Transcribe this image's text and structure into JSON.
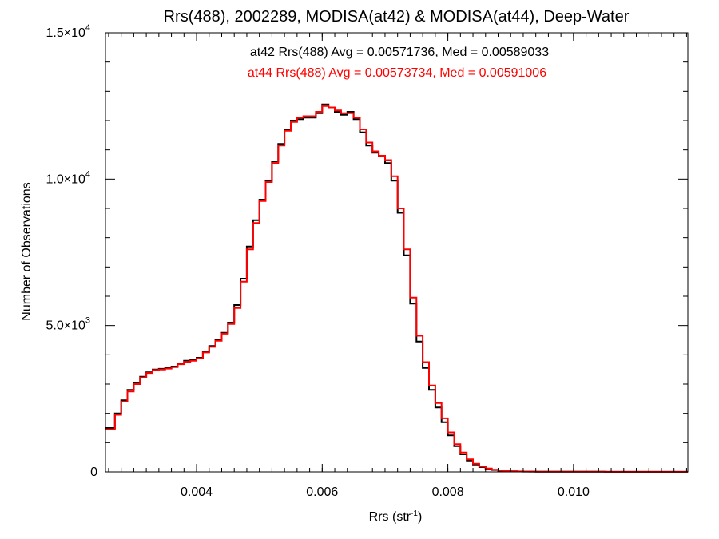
{
  "chart_data": {
    "type": "line",
    "step": true,
    "title": "Rrs(488), 2002289, MODISA(at42) & MODISA(at44), Deep-Water",
    "xlabel": {
      "base": "Rrs (str",
      "sup": "-1",
      "tail": ")"
    },
    "ylabel": "Number of Observations",
    "xlim": [
      0.00255,
      0.01182
    ],
    "ylim": [
      0,
      15000
    ],
    "grid": false,
    "legend_position": "top-center",
    "x_ticks": [
      {
        "value": 0.004,
        "label": "0.004"
      },
      {
        "value": 0.006,
        "label": "0.006"
      },
      {
        "value": 0.008,
        "label": "0.008"
      },
      {
        "value": 0.01,
        "label": "0.010"
      }
    ],
    "y_ticks": [
      {
        "value": 0,
        "mant": "0",
        "exp": ""
      },
      {
        "value": 5000,
        "mant": "5.0×10",
        "exp": "3"
      },
      {
        "value": 10000,
        "mant": "1.0×10",
        "exp": "4"
      },
      {
        "value": 15000,
        "mant": "1.5×10",
        "exp": "4"
      }
    ],
    "annotations": [
      {
        "text": "at42 Rrs(488) Avg = 0.00571736, Med = 0.00589033",
        "color": "#000000"
      },
      {
        "text": "at44 Rrs(488) Avg = 0.00573734, Med = 0.00591006",
        "color": "#ff0000"
      }
    ],
    "series": [
      {
        "name": "at42",
        "color": "#000000",
        "x": [
          0.00255,
          0.0027,
          0.0028,
          0.0029,
          0.003,
          0.0031,
          0.0032,
          0.0033,
          0.0034,
          0.0035,
          0.0036,
          0.0037,
          0.0038,
          0.0039,
          0.004,
          0.0041,
          0.0042,
          0.0043,
          0.0044,
          0.0045,
          0.0046,
          0.0047,
          0.0048,
          0.0049,
          0.005,
          0.0051,
          0.0052,
          0.0053,
          0.0054,
          0.0055,
          0.0056,
          0.0057,
          0.0058,
          0.0059,
          0.006,
          0.0061,
          0.0062,
          0.0063,
          0.0064,
          0.0065,
          0.0066,
          0.0067,
          0.0068,
          0.0069,
          0.007,
          0.0071,
          0.0072,
          0.0073,
          0.0074,
          0.0075,
          0.0076,
          0.0077,
          0.0078,
          0.0079,
          0.008,
          0.0081,
          0.0082,
          0.0083,
          0.0084,
          0.0085,
          0.0086,
          0.0087,
          0.0088,
          0.0089,
          0.009,
          0.0091,
          0.0092,
          0.0093,
          0.0094,
          0.0095,
          0.0096,
          0.0098,
          0.01,
          0.0105,
          0.011,
          0.0118
        ],
        "y": [
          1500,
          2000,
          2450,
          2800,
          3050,
          3250,
          3400,
          3500,
          3520,
          3550,
          3600,
          3700,
          3800,
          3820,
          3900,
          4100,
          4300,
          4500,
          4750,
          5100,
          5700,
          6600,
          7700,
          8600,
          9300,
          9950,
          10600,
          11200,
          11700,
          12000,
          12050,
          12100,
          12100,
          12250,
          12550,
          12450,
          12300,
          12200,
          12300,
          12050,
          11600,
          11150,
          10900,
          10800,
          10550,
          9950,
          8850,
          7400,
          5750,
          4450,
          3550,
          2800,
          2200,
          1700,
          1250,
          880,
          600,
          390,
          250,
          165,
          105,
          65,
          42,
          28,
          20,
          15,
          12,
          10,
          9,
          8,
          7,
          6,
          5,
          4,
          3,
          2
        ]
      },
      {
        "name": "at44",
        "color": "#ff0000",
        "x": [
          0.00255,
          0.0027,
          0.0028,
          0.0029,
          0.003,
          0.0031,
          0.0032,
          0.0033,
          0.0034,
          0.0035,
          0.0036,
          0.0037,
          0.0038,
          0.0039,
          0.004,
          0.0041,
          0.0042,
          0.0043,
          0.0044,
          0.0045,
          0.0046,
          0.0047,
          0.0048,
          0.0049,
          0.005,
          0.0051,
          0.0052,
          0.0053,
          0.0054,
          0.0055,
          0.0056,
          0.0057,
          0.0058,
          0.0059,
          0.006,
          0.0061,
          0.0062,
          0.0063,
          0.0064,
          0.0065,
          0.0066,
          0.0067,
          0.0068,
          0.0069,
          0.007,
          0.0071,
          0.0072,
          0.0073,
          0.0074,
          0.0075,
          0.0076,
          0.0077,
          0.0078,
          0.0079,
          0.008,
          0.0081,
          0.0082,
          0.0083,
          0.0084,
          0.0085,
          0.0086,
          0.0087,
          0.0088,
          0.0089,
          0.009,
          0.0091,
          0.0092,
          0.0093,
          0.0094,
          0.0095,
          0.0096,
          0.0098,
          0.01,
          0.0105,
          0.011,
          0.0118
        ],
        "y": [
          1450,
          1950,
          2400,
          2750,
          3000,
          3220,
          3380,
          3480,
          3500,
          3530,
          3580,
          3680,
          3760,
          3800,
          3880,
          4080,
          4270,
          4480,
          4720,
          5050,
          5600,
          6500,
          7600,
          8500,
          9250,
          9900,
          10550,
          11150,
          11650,
          11950,
          12100,
          12150,
          12150,
          12300,
          12500,
          12450,
          12350,
          12250,
          12250,
          12100,
          11700,
          11250,
          10950,
          10800,
          10650,
          10100,
          9000,
          7600,
          5950,
          4650,
          3750,
          2950,
          2350,
          1830,
          1350,
          950,
          660,
          430,
          280,
          185,
          118,
          75,
          48,
          32,
          22,
          16,
          13,
          11,
          9,
          8,
          7,
          6,
          5,
          4,
          3,
          2
        ]
      }
    ]
  }
}
